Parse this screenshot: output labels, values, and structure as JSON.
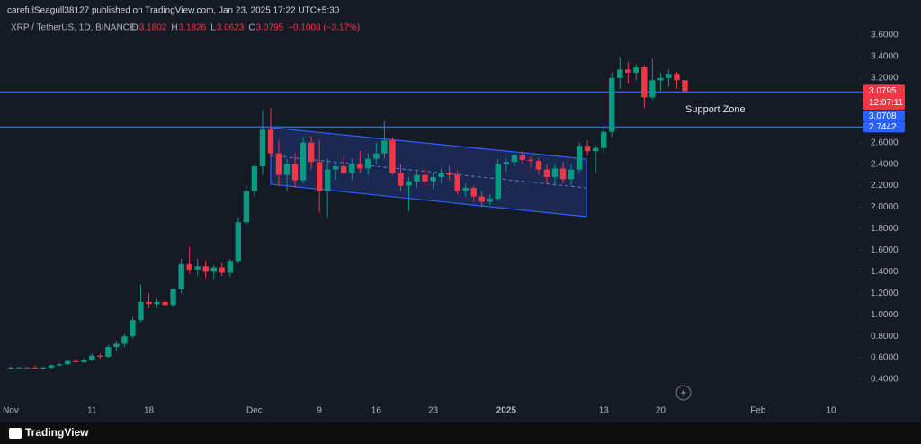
{
  "header": {
    "publisher": "carefulSeagull38127 published on TradingView.com, Jan 23, 2025 17:22 UTC+5:30",
    "brand": "TradingView"
  },
  "chart_data": {
    "type": "candlestick",
    "symbol": "XRP / TetherUS, 1D, BINANCE",
    "ohlc_labels": [
      "O",
      "H",
      "L",
      "C"
    ],
    "change_label": "−0.1008 (−3.17%)",
    "countdown": "12:07:11",
    "annotation": "Support Zone",
    "up_color": "#089981",
    "down_color": "#f23645",
    "level_color": "#2962ff",
    "levels": [
      3.0708,
      2.7442
    ],
    "grid": false,
    "categories": [
      "Nov",
      null,
      null,
      null,
      null,
      null,
      null,
      null,
      null,
      null,
      "11",
      null,
      null,
      null,
      null,
      null,
      null,
      "18",
      null,
      null,
      null,
      null,
      null,
      null,
      null,
      null,
      null,
      null,
      null,
      null,
      "Dec",
      null,
      null,
      null,
      null,
      null,
      null,
      null,
      "9",
      null,
      null,
      null,
      null,
      null,
      null,
      "16",
      null,
      null,
      null,
      null,
      null,
      null,
      "23",
      null,
      null,
      null,
      null,
      null,
      null,
      null,
      null,
      "2025",
      null,
      null,
      null,
      null,
      null,
      null,
      null,
      null,
      null,
      null,
      null,
      "13",
      null,
      null,
      null,
      null,
      null,
      null,
      "20",
      null,
      null,
      null,
      null,
      null,
      null,
      null,
      null,
      null,
      null,
      null,
      "Feb",
      null,
      null,
      null,
      null,
      null,
      null,
      null,
      null,
      "10"
    ],
    "open": [
      0.5,
      0.51,
      0.51,
      0.51,
      0.5,
      0.51,
      0.53,
      0.54,
      0.57,
      0.56,
      0.58,
      0.62,
      0.61,
      0.7,
      0.73,
      0.8,
      0.95,
      1.12,
      1.1,
      1.12,
      1.09,
      1.24,
      1.47,
      1.42,
      1.45,
      1.4,
      1.44,
      1.39,
      1.5,
      1.86,
      2.15,
      2.38,
      2.72,
      2.5,
      2.3,
      2.4,
      2.25,
      2.6,
      2.42,
      2.15,
      2.35,
      2.38,
      2.32,
      2.4,
      2.36,
      2.45,
      2.5,
      2.62,
      2.32,
      2.2,
      2.24,
      2.3,
      2.24,
      2.28,
      2.32,
      2.3,
      2.15,
      2.18,
      2.1,
      2.05,
      2.08,
      2.4,
      2.42,
      2.48,
      2.44,
      2.43,
      2.35,
      2.28,
      2.36,
      2.26,
      2.35,
      2.57,
      2.52,
      2.55,
      2.7,
      3.2,
      3.28,
      3.25,
      3.3,
      3.02,
      3.18,
      3.2,
      3.24,
      3.1802,
      null,
      null,
      null,
      null,
      null,
      null,
      null,
      null,
      null,
      null,
      null,
      null,
      null,
      null,
      null,
      null,
      null,
      null
    ],
    "high": [
      0.52,
      0.52,
      0.52,
      0.53,
      0.52,
      0.54,
      0.55,
      0.58,
      0.59,
      0.6,
      0.64,
      0.64,
      0.72,
      0.76,
      0.82,
      0.98,
      1.28,
      1.2,
      1.15,
      1.14,
      1.25,
      1.52,
      1.63,
      1.52,
      1.5,
      1.46,
      1.48,
      1.52,
      1.9,
      2.2,
      2.4,
      2.9,
      2.92,
      2.62,
      2.45,
      2.5,
      2.65,
      2.66,
      2.62,
      2.45,
      2.42,
      2.48,
      2.45,
      2.52,
      2.5,
      2.6,
      2.8,
      2.65,
      2.4,
      2.28,
      2.35,
      2.36,
      2.32,
      2.36,
      2.38,
      2.34,
      2.22,
      2.2,
      2.15,
      2.12,
      2.45,
      2.45,
      2.5,
      2.52,
      2.47,
      2.46,
      2.4,
      2.4,
      2.42,
      2.4,
      2.6,
      2.62,
      2.58,
      2.75,
      3.25,
      3.4,
      3.35,
      3.33,
      3.32,
      3.38,
      3.25,
      3.28,
      3.26,
      3.1826,
      null,
      null,
      null,
      null,
      null,
      null,
      null,
      null,
      null,
      null,
      null,
      null,
      null,
      null,
      null,
      null,
      null,
      null
    ],
    "low": [
      0.49,
      0.5,
      0.5,
      0.5,
      0.49,
      0.5,
      0.52,
      0.53,
      0.55,
      0.55,
      0.57,
      0.59,
      0.6,
      0.66,
      0.7,
      0.78,
      0.93,
      1.06,
      1.06,
      1.08,
      1.07,
      1.2,
      1.38,
      1.36,
      1.34,
      1.33,
      1.36,
      1.35,
      1.48,
      1.84,
      2.1,
      2.3,
      2.45,
      2.2,
      2.15,
      2.18,
      2.22,
      2.35,
      1.95,
      1.9,
      2.25,
      2.3,
      2.25,
      2.32,
      2.3,
      2.4,
      2.45,
      2.3,
      2.15,
      1.96,
      2.18,
      2.2,
      2.17,
      2.22,
      2.25,
      2.12,
      2.1,
      2.05,
      2.0,
      2.02,
      2.06,
      2.33,
      2.38,
      2.4,
      2.37,
      2.3,
      2.22,
      2.2,
      2.22,
      2.2,
      2.32,
      2.48,
      2.32,
      2.5,
      2.65,
      3.1,
      3.15,
      3.18,
      2.92,
      3.0,
      3.08,
      3.12,
      3.1,
      3.0623,
      null,
      null,
      null,
      null,
      null,
      null,
      null,
      null,
      null,
      null,
      null,
      null,
      null,
      null,
      null,
      null,
      null,
      null
    ],
    "close": [
      0.51,
      0.51,
      0.51,
      0.5,
      0.51,
      0.53,
      0.54,
      0.57,
      0.56,
      0.58,
      0.62,
      0.61,
      0.7,
      0.73,
      0.8,
      0.95,
      1.12,
      1.1,
      1.12,
      1.09,
      1.24,
      1.47,
      1.42,
      1.45,
      1.4,
      1.44,
      1.39,
      1.5,
      1.86,
      2.15,
      2.38,
      2.72,
      2.5,
      2.3,
      2.4,
      2.25,
      2.6,
      2.42,
      2.15,
      2.35,
      2.38,
      2.32,
      2.4,
      2.36,
      2.45,
      2.5,
      2.62,
      2.32,
      2.2,
      2.24,
      2.3,
      2.24,
      2.28,
      2.32,
      2.3,
      2.15,
      2.18,
      2.1,
      2.05,
      2.08,
      2.4,
      2.42,
      2.48,
      2.44,
      2.43,
      2.35,
      2.28,
      2.36,
      2.26,
      2.35,
      2.57,
      2.52,
      2.55,
      2.7,
      3.2,
      3.28,
      3.25,
      3.3,
      3.02,
      3.18,
      3.2,
      3.24,
      3.18,
      3.0795,
      null,
      null,
      null,
      null,
      null,
      null,
      null,
      null,
      null,
      null,
      null,
      null,
      null,
      null,
      null,
      null,
      null,
      null
    ],
    "ylim": [
      0.3,
      3.75
    ],
    "yticks": [
      {
        "value": 0.4,
        "label": "0.4000"
      },
      {
        "value": 0.6,
        "label": "0.6000"
      },
      {
        "value": 0.8,
        "label": "0.8000"
      },
      {
        "value": 1.0,
        "label": "1.0000"
      },
      {
        "value": 1.2,
        "label": "1.2000"
      },
      {
        "value": 1.4,
        "label": "1.4000"
      },
      {
        "value": 1.6,
        "label": "1.6000"
      },
      {
        "value": 1.8,
        "label": "1.8000"
      },
      {
        "value": 2.0,
        "label": "2.0000"
      },
      {
        "value": 2.2,
        "label": "2.2000"
      },
      {
        "value": 2.4,
        "label": "2.4000"
      },
      {
        "value": 2.6,
        "label": "2.6000"
      },
      {
        "value": 2.8,
        "label": "2.8000"
      },
      {
        "value": 3.0,
        "label": "3.0000"
      },
      {
        "value": 3.2,
        "label": "3.2000"
      },
      {
        "value": 3.4,
        "label": "3.4000"
      },
      {
        "value": 3.6,
        "label": "3.6000"
      }
    ]
  }
}
